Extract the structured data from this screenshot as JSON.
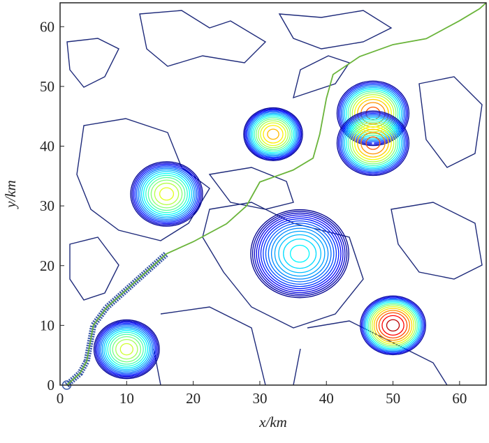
{
  "chart_data": {
    "type": "contour",
    "xlabel": "x/km",
    "ylabel": "y/km",
    "xlim": [
      0,
      64
    ],
    "ylim": [
      0,
      64
    ],
    "xticks": [
      0,
      10,
      20,
      30,
      40,
      50,
      60
    ],
    "yticks": [
      0,
      10,
      20,
      30,
      40,
      50,
      60
    ],
    "zlim": [
      0,
      1
    ],
    "peaks": {
      "x": [
        10,
        16,
        32,
        36,
        47,
        47,
        50
      ],
      "y": [
        6,
        32,
        42,
        22,
        45.5,
        40.5,
        10
      ],
      "radius": [
        5,
        5.5,
        4.5,
        7.5,
        5.5,
        5.5,
        5
      ],
      "heights": [
        0.6,
        0.62,
        0.72,
        0.38,
        0.82,
        0.82,
        0.98
      ]
    },
    "path": {
      "color": "#6ab43a",
      "x": [
        1,
        3,
        4,
        5,
        7,
        10,
        13,
        16,
        20,
        25,
        28,
        30,
        35,
        38,
        39,
        40,
        41,
        45,
        50,
        55,
        60,
        63,
        64
      ],
      "y": [
        0,
        2,
        4,
        10,
        13,
        16,
        19,
        22,
        24,
        27,
        30,
        34,
        36,
        38,
        42,
        48,
        52,
        55,
        57,
        58,
        61,
        63,
        64
      ]
    }
  }
}
